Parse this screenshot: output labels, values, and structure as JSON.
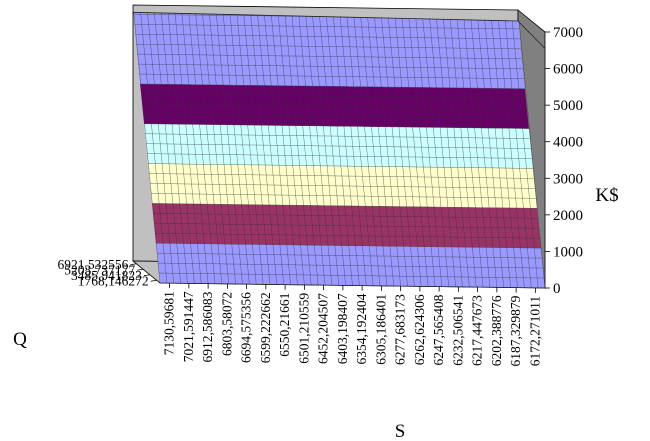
{
  "chart_data": {
    "type": "surface",
    "title": "",
    "xlabel": "S",
    "ylabel": "Q",
    "zlabel": "K$",
    "x_ticks": [
      "7130,59681",
      "7021,591447",
      "6912,586083",
      "6803,58072",
      "6694,575356",
      "6599,222662",
      "6550,21661",
      "6501,210559",
      "6452,204507",
      "6403,198407",
      "6354,192404",
      "6305,186401",
      "6277,683173",
      "6262,624306",
      "6247,565408",
      "6232,506541",
      "6217,447673",
      "6202,388776",
      "6187,329879",
      "6172,271011"
    ],
    "y_ticks": [
      "6921,532556",
      "5203,737177",
      "3485,941823",
      "1768,146272"
    ],
    "z_ticks": [
      "0",
      "1000",
      "2000",
      "3000",
      "4000",
      "5000",
      "6000",
      "7000"
    ],
    "zlim": [
      0,
      7000
    ],
    "z_at_front_left": [
      0,
      6450
    ],
    "z_at_front_right": [
      0,
      6550
    ],
    "z_at_back_left": [
      0,
      6800
    ],
    "z_at_back_right": [
      100,
      6700
    ],
    "bands": [
      {
        "range": [
          0,
          1000
        ],
        "color": "#9999FF"
      },
      {
        "range": [
          1000,
          2000
        ],
        "color": "#993366"
      },
      {
        "range": [
          2000,
          3000
        ],
        "color": "#FFFFCC"
      },
      {
        "range": [
          3000,
          4000
        ],
        "color": "#CCFFFF"
      },
      {
        "range": [
          4000,
          5000
        ],
        "color": "#660066"
      },
      {
        "range": [
          5000,
          6000
        ],
        "color": "#9999FF"
      },
      {
        "range": [
          6000,
          7000
        ],
        "color": "#9999FF"
      }
    ],
    "wall_color": "#C0C0C0",
    "side_wall_color": "#808080",
    "floor_color": "#C0C0C0",
    "grid": true
  }
}
